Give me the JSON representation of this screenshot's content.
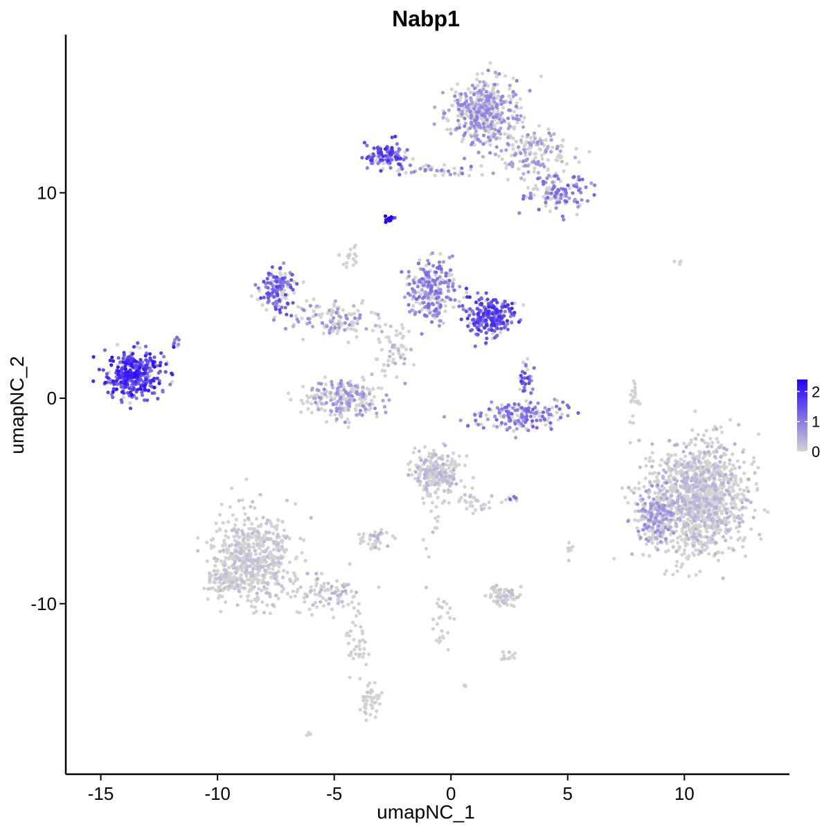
{
  "chart_data": {
    "type": "scatter",
    "title": "Nabp1",
    "xlabel": "umapNC_1",
    "ylabel": "umapNC_2",
    "xlim": [
      -16.5,
      14.5
    ],
    "ylim": [
      -18.3,
      17.7
    ],
    "x_ticks": [
      -15,
      -10,
      -5,
      0,
      5,
      10
    ],
    "x_tick_labels": [
      "-15",
      "-10",
      "-5",
      "0",
      "5",
      "10"
    ],
    "y_ticks": [
      -10,
      0,
      10
    ],
    "y_tick_labels": [
      "-10",
      "0",
      "10"
    ],
    "grid": false,
    "color_scale": {
      "low_color": "#d3d3d3",
      "high_color": "#2200ff",
      "min": 0,
      "max": 2.4,
      "ticks": [
        0,
        1,
        2
      ],
      "tick_labels": [
        "0",
        "1",
        "2"
      ],
      "legend_position": "right"
    },
    "clusters": [
      {
        "cx": -13.6,
        "cy": 1.2,
        "sx": 0.7,
        "sy": 0.65,
        "n": 360,
        "expr": 1.6
      },
      {
        "cx": -11.8,
        "cy": 2.6,
        "sx": 0.15,
        "sy": 0.2,
        "n": 8,
        "expr": 1.0
      },
      {
        "cx": -7.4,
        "cy": 5.3,
        "sx": 0.45,
        "sy": 0.6,
        "n": 150,
        "expr": 1.2
      },
      {
        "cx": -5.0,
        "cy": 3.8,
        "sx": 1.0,
        "sy": 0.5,
        "n": 110,
        "expr": 0.6
      },
      {
        "cx": -4.6,
        "cy": 0.0,
        "sx": 1.0,
        "sy": 0.6,
        "n": 230,
        "expr": 0.6
      },
      {
        "cx": -4.4,
        "cy": 7.0,
        "sx": 0.3,
        "sy": 0.35,
        "n": 18,
        "expr": 0.1
      },
      {
        "cx": -2.6,
        "cy": 8.7,
        "sx": 0.12,
        "sy": 0.12,
        "n": 12,
        "expr": 2.2
      },
      {
        "cx": -2.5,
        "cy": 2.5,
        "sx": 0.45,
        "sy": 0.9,
        "n": 60,
        "expr": 0.3
      },
      {
        "cx": -0.8,
        "cy": 5.2,
        "sx": 0.6,
        "sy": 0.8,
        "n": 260,
        "expr": 0.9
      },
      {
        "cx": 1.7,
        "cy": 4.0,
        "sx": 0.6,
        "sy": 0.55,
        "n": 250,
        "expr": 1.4
      },
      {
        "cx": -2.8,
        "cy": 11.8,
        "sx": 0.6,
        "sy": 0.4,
        "n": 120,
        "expr": 1.4
      },
      {
        "cx": -0.4,
        "cy": 11.1,
        "sx": 1.0,
        "sy": 0.2,
        "n": 40,
        "expr": 0.8
      },
      {
        "cx": 1.4,
        "cy": 14.0,
        "sx": 0.8,
        "sy": 0.9,
        "n": 450,
        "expr": 0.7
      },
      {
        "cx": 3.4,
        "cy": 12.0,
        "sx": 1.0,
        "sy": 0.7,
        "n": 150,
        "expr": 0.6
      },
      {
        "cx": 4.6,
        "cy": 10.0,
        "sx": 0.8,
        "sy": 0.5,
        "n": 120,
        "expr": 1.0
      },
      {
        "cx": 3.0,
        "cy": -0.8,
        "sx": 1.1,
        "sy": 0.4,
        "n": 180,
        "expr": 1.0
      },
      {
        "cx": 3.2,
        "cy": 0.8,
        "sx": 0.2,
        "sy": 0.5,
        "n": 30,
        "expr": 1.3
      },
      {
        "cx": 9.7,
        "cy": 6.6,
        "sx": 0.15,
        "sy": 0.1,
        "n": 4,
        "expr": 0.1
      },
      {
        "cx": 7.8,
        "cy": 0.0,
        "sx": 0.15,
        "sy": 0.7,
        "n": 20,
        "expr": 0.0
      },
      {
        "cx": 10.6,
        "cy": -4.8,
        "sx": 1.2,
        "sy": 1.6,
        "n": 1200,
        "expr": 0.3
      },
      {
        "cx": 8.8,
        "cy": -5.8,
        "sx": 0.5,
        "sy": 0.7,
        "n": 200,
        "expr": 0.6
      },
      {
        "cx": -0.6,
        "cy": -3.6,
        "sx": 0.6,
        "sy": 0.6,
        "n": 230,
        "expr": 0.3
      },
      {
        "cx": 1.0,
        "cy": -5.0,
        "sx": 0.4,
        "sy": 0.4,
        "n": 30,
        "expr": 0.2
      },
      {
        "cx": -0.8,
        "cy": -6.0,
        "sx": 0.3,
        "sy": 1.0,
        "n": 20,
        "expr": 0.2
      },
      {
        "cx": -3.3,
        "cy": -6.9,
        "sx": 0.4,
        "sy": 0.25,
        "n": 40,
        "expr": 0.3
      },
      {
        "cx": 2.7,
        "cy": -4.9,
        "sx": 0.2,
        "sy": 0.1,
        "n": 8,
        "expr": 1.0
      },
      {
        "cx": 5.1,
        "cy": -7.4,
        "sx": 0.1,
        "sy": 0.3,
        "n": 8,
        "expr": 0.1
      },
      {
        "cx": 2.3,
        "cy": -9.6,
        "sx": 0.45,
        "sy": 0.3,
        "n": 70,
        "expr": 0.2
      },
      {
        "cx": -0.4,
        "cy": -11.0,
        "sx": 0.3,
        "sy": 0.9,
        "n": 25,
        "expr": 0.1
      },
      {
        "cx": 2.4,
        "cy": -12.5,
        "sx": 0.25,
        "sy": 0.2,
        "n": 12,
        "expr": 0.2
      },
      {
        "cx": -8.4,
        "cy": -7.8,
        "sx": 1.0,
        "sy": 1.2,
        "n": 550,
        "expr": 0.2
      },
      {
        "cx": -9.6,
        "cy": -8.9,
        "sx": 0.5,
        "sy": 0.4,
        "n": 80,
        "expr": 0.2
      },
      {
        "cx": -5.5,
        "cy": -9.5,
        "sx": 1.0,
        "sy": 0.6,
        "n": 90,
        "expr": 0.3
      },
      {
        "cx": -4.0,
        "cy": -12.0,
        "sx": 0.25,
        "sy": 1.1,
        "n": 40,
        "expr": 0.1
      },
      {
        "cx": -3.5,
        "cy": -14.7,
        "sx": 0.25,
        "sy": 0.5,
        "n": 45,
        "expr": 0.1
      },
      {
        "cx": -6.1,
        "cy": -16.3,
        "sx": 0.08,
        "sy": 0.06,
        "n": 4,
        "expr": 0.0
      },
      {
        "cx": 0.6,
        "cy": -14.0,
        "sx": 0.08,
        "sy": 0.06,
        "n": 3,
        "expr": 0.0
      }
    ]
  }
}
